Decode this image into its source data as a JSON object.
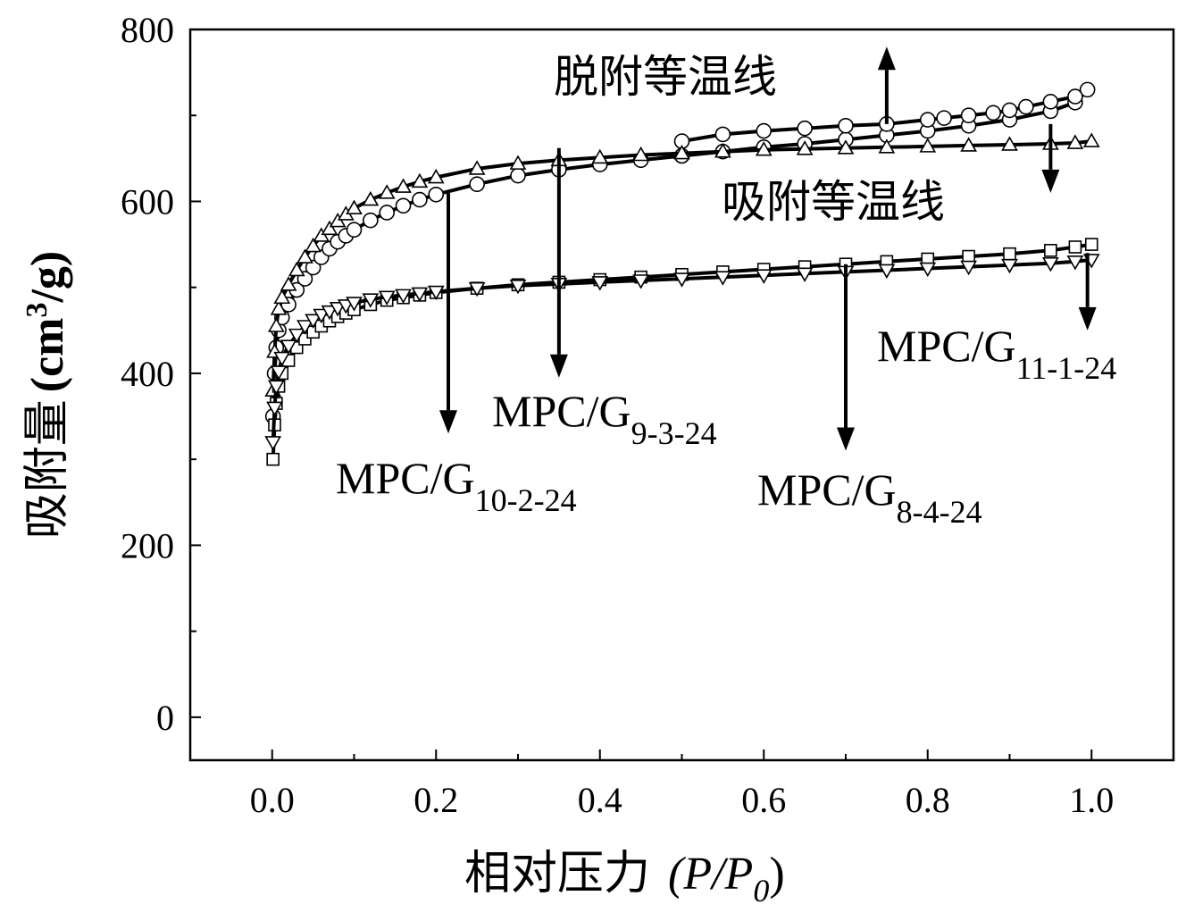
{
  "chart_data": {
    "type": "scatter",
    "xlabel_text": "相对压力",
    "xlabel_unit": "(P/P",
    "xlabel_unit_sub": "0",
    "xlabel_unit_close": ")",
    "ylabel_text": "吸附量",
    "ylabel_unit_open": "(cm",
    "ylabel_unit_sup": "3",
    "ylabel_unit_close": "/g)",
    "xlim": [
      -0.1,
      1.1
    ],
    "ylim": [
      -50,
      800
    ],
    "xticks": [
      0.0,
      0.2,
      0.4,
      0.6,
      0.8,
      1.0
    ],
    "xtick_labels": [
      "0.0",
      "0.2",
      "0.4",
      "0.6",
      "0.8",
      "1.0"
    ],
    "yticks": [
      0,
      200,
      400,
      600,
      800
    ],
    "ytick_labels": [
      "0",
      "200",
      "400",
      "600",
      "800"
    ],
    "grid": false,
    "legend": "none",
    "annotations": {
      "desorption": "脱附等温线",
      "adsorption": "吸附等温线",
      "labels": [
        {
          "main": "MPC/G",
          "sub": "10-2-24",
          "series": "circle"
        },
        {
          "main": "MPC/G",
          "sub": "9-3-24",
          "series": "triangle-up"
        },
        {
          "main": "MPC/G",
          "sub": "8-4-24",
          "series": "square"
        },
        {
          "main": "MPC/G",
          "sub": "11-1-24",
          "series": "triangle-down"
        }
      ]
    },
    "series": [
      {
        "marker": "circle",
        "x": [
          0.001,
          0.003,
          0.005,
          0.008,
          0.012,
          0.02,
          0.03,
          0.04,
          0.05,
          0.06,
          0.07,
          0.08,
          0.09,
          0.1,
          0.12,
          0.14,
          0.16,
          0.18,
          0.2,
          0.25,
          0.3,
          0.35,
          0.4,
          0.45,
          0.5,
          0.55,
          0.6,
          0.65,
          0.7,
          0.75,
          0.8,
          0.85,
          0.9,
          0.95,
          0.98,
          0.995,
          0.98,
          0.95,
          0.92,
          0.9,
          0.88,
          0.85,
          0.82,
          0.8,
          0.75,
          0.7,
          0.65,
          0.6,
          0.55,
          0.5
        ],
        "y": [
          350,
          400,
          430,
          450,
          465,
          480,
          497,
          510,
          523,
          535,
          545,
          553,
          560,
          567,
          578,
          587,
          595,
          602,
          608,
          620,
          630,
          637,
          643,
          648,
          653,
          658,
          663,
          667,
          672,
          677,
          682,
          688,
          695,
          705,
          715,
          730,
          722,
          716,
          710,
          706,
          703,
          700,
          697,
          695,
          690,
          688,
          685,
          682,
          678,
          670
        ]
      },
      {
        "marker": "triangle-up",
        "x": [
          0.001,
          0.003,
          0.005,
          0.008,
          0.012,
          0.02,
          0.03,
          0.04,
          0.05,
          0.06,
          0.07,
          0.08,
          0.09,
          0.1,
          0.12,
          0.14,
          0.16,
          0.18,
          0.2,
          0.25,
          0.3,
          0.35,
          0.4,
          0.45,
          0.5,
          0.55,
          0.6,
          0.65,
          0.7,
          0.75,
          0.8,
          0.85,
          0.9,
          0.95,
          0.98,
          1.0
        ],
        "y": [
          380,
          425,
          455,
          475,
          488,
          503,
          520,
          535,
          548,
          560,
          568,
          577,
          585,
          592,
          602,
          610,
          617,
          623,
          628,
          638,
          644,
          648,
          651,
          654,
          656,
          658,
          660,
          661,
          662,
          663,
          664,
          665,
          666,
          667,
          668,
          670
        ]
      },
      {
        "marker": "square",
        "x": [
          0.001,
          0.003,
          0.005,
          0.008,
          0.012,
          0.02,
          0.03,
          0.04,
          0.05,
          0.06,
          0.07,
          0.08,
          0.09,
          0.1,
          0.12,
          0.14,
          0.16,
          0.18,
          0.2,
          0.25,
          0.3,
          0.35,
          0.4,
          0.45,
          0.5,
          0.55,
          0.6,
          0.65,
          0.7,
          0.75,
          0.8,
          0.85,
          0.9,
          0.95,
          0.98,
          1.0
        ],
        "y": [
          300,
          340,
          365,
          385,
          400,
          415,
          430,
          440,
          448,
          455,
          461,
          466,
          470,
          474,
          480,
          485,
          488,
          491,
          494,
          499,
          503,
          506,
          509,
          512,
          515,
          518,
          521,
          524,
          527,
          530,
          533,
          536,
          539,
          543,
          547,
          550
        ]
      },
      {
        "marker": "triangle-down",
        "x": [
          0.001,
          0.003,
          0.005,
          0.008,
          0.012,
          0.02,
          0.03,
          0.04,
          0.05,
          0.06,
          0.07,
          0.08,
          0.09,
          0.1,
          0.12,
          0.14,
          0.16,
          0.18,
          0.2,
          0.25,
          0.3,
          0.35,
          0.4,
          0.45,
          0.5,
          0.55,
          0.6,
          0.65,
          0.7,
          0.75,
          0.8,
          0.85,
          0.9,
          0.95,
          0.98,
          1.0
        ],
        "y": [
          320,
          360,
          385,
          402,
          418,
          432,
          445,
          455,
          462,
          468,
          472,
          476,
          479,
          482,
          486,
          489,
          491,
          493,
          495,
          499,
          502,
          504,
          506,
          508,
          510,
          512,
          514,
          516,
          518,
          520,
          522,
          524,
          526,
          528,
          530,
          532
        ]
      }
    ],
    "arrows": [
      {
        "x": 0.75,
        "y_from": 690,
        "y_to": 780
      },
      {
        "x": 0.95,
        "y_from": 690,
        "y_to": 610
      },
      {
        "x": 0.215,
        "y_from": 612,
        "y_to": 330
      },
      {
        "x": 0.35,
        "y_from": 662,
        "y_to": 395
      },
      {
        "x": 0.7,
        "y_from": 527,
        "y_to": 310
      },
      {
        "x": 0.995,
        "y_from": 540,
        "y_to": 450
      }
    ]
  }
}
